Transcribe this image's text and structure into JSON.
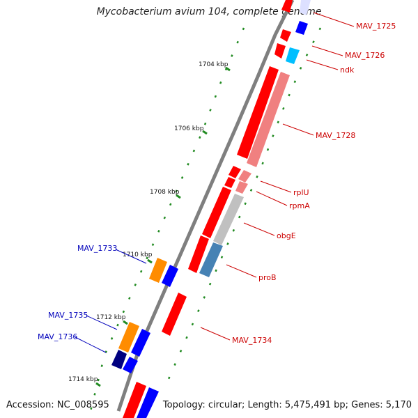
{
  "title": "Mycobacterium avium 104, complete genome",
  "footer": {
    "accession": "Accession: NC_008595",
    "summary": "Topology: circular; Length: 5,475,491 bp; Genes: 5,170"
  },
  "ticks": [
    {
      "label": "1704 kbp",
      "color": "#111111"
    },
    {
      "label": "1706 kbp",
      "color": "#111111"
    },
    {
      "label": "1708 kbp",
      "color": "#111111"
    },
    {
      "label": "1710 kbp",
      "color": "#111111"
    },
    {
      "label": "1712 kbp",
      "color": "#111111"
    },
    {
      "label": "1714 kbp",
      "color": "#111111"
    }
  ],
  "genes_right": [
    {
      "label": "MAV_1725",
      "color": "#cc0000"
    },
    {
      "label": "MAV_1726",
      "color": "#cc0000"
    },
    {
      "label": "ndk",
      "color": "#cc0000"
    },
    {
      "label": "MAV_1728",
      "color": "#cc0000"
    },
    {
      "label": "rplU",
      "color": "#cc0000"
    },
    {
      "label": "rpmA",
      "color": "#cc0000"
    },
    {
      "label": "obgE",
      "color": "#cc0000"
    },
    {
      "label": "proB",
      "color": "#cc0000"
    },
    {
      "label": "MAV_1734",
      "color": "#cc0000"
    }
  ],
  "genes_left": [
    {
      "label": "MAV_1733",
      "color": "#0000bb"
    },
    {
      "label": "MAV_1735",
      "color": "#0000bb"
    },
    {
      "label": "MAV_1736",
      "color": "#0000bb"
    }
  ],
  "colors": {
    "forward_strand": "#ff0000",
    "reverse_strand": "#0000ff",
    "backbone": "#888888",
    "dots": "#228b22",
    "orange": "#ff8c00",
    "navy": "#000080"
  }
}
